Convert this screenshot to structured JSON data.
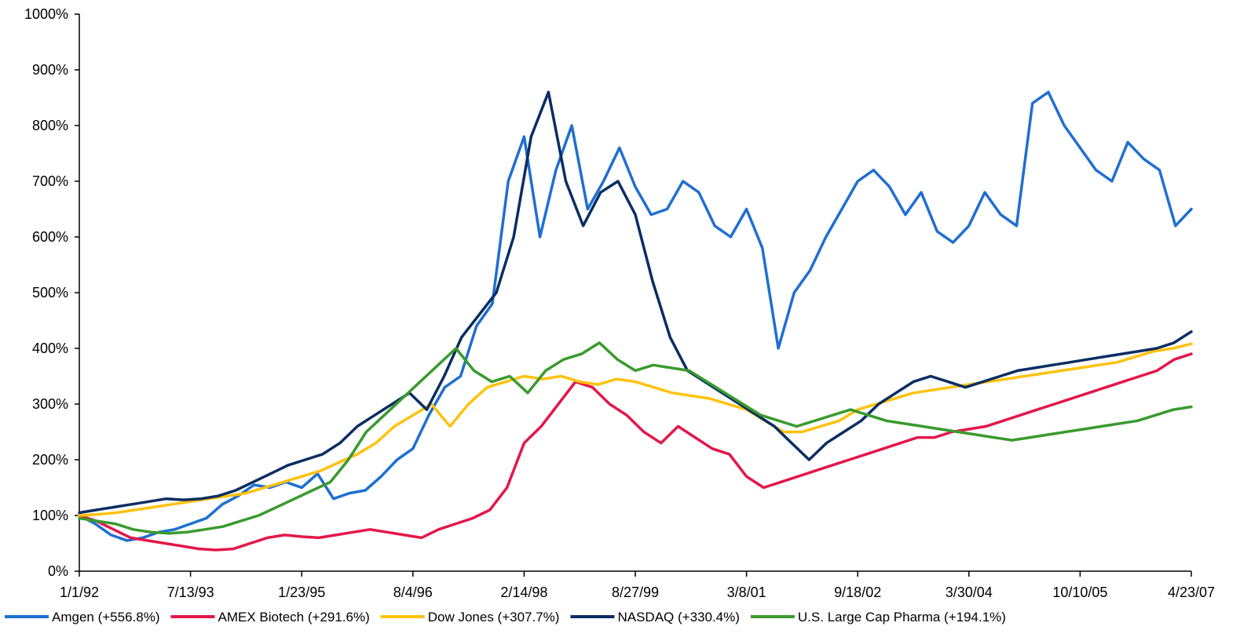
{
  "chart_data": {
    "type": "line",
    "title": "",
    "xlabel": "",
    "ylabel": "",
    "ylim": [
      0,
      1000
    ],
    "y_ticks": [
      "0%",
      "100%",
      "200%",
      "300%",
      "400%",
      "500%",
      "600%",
      "700%",
      "800%",
      "900%",
      "1000%"
    ],
    "x_ticks": [
      "1/1/92",
      "7/13/93",
      "1/23/95",
      "8/4/96",
      "2/14/98",
      "8/27/99",
      "3/8/01",
      "9/18/02",
      "3/30/04",
      "10/10/05",
      "4/23/07"
    ],
    "grid": false,
    "legend_position": "bottom",
    "series": [
      {
        "name": "Amgen  (+556.8%)",
        "color": "#1F6FD1",
        "values": [
          100,
          85,
          65,
          55,
          60,
          70,
          75,
          85,
          95,
          120,
          135,
          155,
          150,
          160,
          150,
          175,
          130,
          140,
          145,
          170,
          200,
          220,
          280,
          330,
          350,
          440,
          480,
          700,
          780,
          600,
          720,
          800,
          650,
          700,
          760,
          690,
          640,
          650,
          700,
          680,
          620,
          600,
          650,
          580,
          400,
          500,
          540,
          600,
          650,
          700,
          720,
          690,
          640,
          680,
          610,
          590,
          620,
          680,
          640,
          620,
          840,
          860,
          800,
          760,
          720,
          700,
          770,
          740,
          720,
          620,
          650
        ]
      },
      {
        "name": "AMEX Biotech  (+291.6%)",
        "color": "#E3174B",
        "values": [
          100,
          90,
          75,
          60,
          55,
          50,
          45,
          40,
          38,
          40,
          50,
          60,
          65,
          62,
          60,
          65,
          70,
          75,
          70,
          65,
          60,
          75,
          85,
          95,
          110,
          150,
          230,
          260,
          300,
          340,
          330,
          300,
          280,
          250,
          230,
          260,
          240,
          220,
          210,
          170,
          150,
          160,
          170,
          180,
          190,
          200,
          210,
          220,
          230,
          240,
          240,
          250,
          255,
          260,
          270,
          280,
          290,
          300,
          310,
          320,
          330,
          340,
          350,
          360,
          380,
          390
        ]
      },
      {
        "name": "Dow Jones  (+307.7%)",
        "color": "#FFC20E",
        "values": [
          100,
          102,
          105,
          110,
          115,
          120,
          125,
          130,
          135,
          140,
          150,
          160,
          170,
          180,
          195,
          210,
          230,
          260,
          280,
          300,
          260,
          300,
          330,
          340,
          350,
          345,
          350,
          340,
          335,
          345,
          340,
          330,
          320,
          315,
          310,
          300,
          290,
          270,
          250,
          250,
          260,
          270,
          290,
          300,
          310,
          320,
          325,
          330,
          335,
          340,
          345,
          350,
          355,
          360,
          365,
          370,
          375,
          385,
          395,
          400,
          408
        ]
      },
      {
        "name": "NASDAQ  (+330.4%)",
        "color": "#0B2D63",
        "values": [
          105,
          110,
          115,
          120,
          125,
          130,
          128,
          130,
          135,
          145,
          160,
          175,
          190,
          200,
          210,
          230,
          260,
          280,
          300,
          320,
          290,
          350,
          420,
          460,
          500,
          600,
          780,
          860,
          700,
          620,
          680,
          700,
          640,
          520,
          420,
          360,
          340,
          320,
          300,
          280,
          260,
          230,
          200,
          230,
          250,
          270,
          300,
          320,
          340,
          350,
          340,
          330,
          340,
          350,
          360,
          365,
          370,
          375,
          380,
          385,
          390,
          395,
          400,
          410,
          430
        ]
      },
      {
        "name": "U.S. Large Cap Pharma  (+194.1%)",
        "color": "#3A9A2E",
        "values": [
          95,
          90,
          85,
          75,
          70,
          68,
          70,
          75,
          80,
          90,
          100,
          115,
          130,
          145,
          160,
          200,
          250,
          280,
          310,
          340,
          370,
          400,
          360,
          340,
          350,
          320,
          360,
          380,
          390,
          410,
          380,
          360,
          370,
          365,
          360,
          340,
          320,
          300,
          280,
          270,
          260,
          270,
          280,
          290,
          280,
          270,
          265,
          260,
          255,
          250,
          245,
          240,
          235,
          240,
          245,
          250,
          255,
          260,
          265,
          270,
          280,
          290,
          295
        ]
      }
    ]
  }
}
